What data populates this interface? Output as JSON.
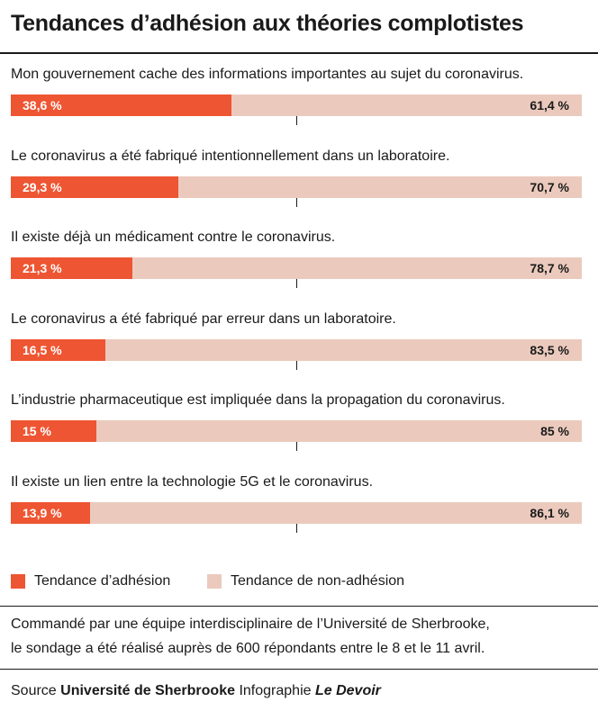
{
  "title": "Tendances d’adhésion aux théories complotistes",
  "chart_data": {
    "type": "bar",
    "stacked": true,
    "orientation": "horizontal",
    "xlim": [
      0,
      100
    ],
    "colors": {
      "adhesion": "#ee5532",
      "non_adhesion": "#ebcabd"
    },
    "categories": [
      "Mon gouvernement cache des informations importantes au sujet du coronavirus.",
      "Le coronavirus a été fabriqué intentionnellement dans un laboratoire.",
      "Il existe déjà un médicament contre le coronavirus.",
      "Le coronavirus a été fabriqué par erreur dans un laboratoire.",
      "L’industrie pharmaceutique est impliquée dans la propagation du coronavirus.",
      "Il existe un lien entre la technologie 5G et le coronavirus."
    ],
    "series": [
      {
        "name": "Tendance d’adhésion",
        "values": [
          38.6,
          29.3,
          21.3,
          16.5,
          15,
          13.9
        ],
        "labels": [
          "38,6 %",
          "29,3 %",
          "21,3 %",
          "16,5 %",
          "15 %",
          "13,9 %"
        ]
      },
      {
        "name": "Tendance de non-adhésion",
        "values": [
          61.4,
          70.7,
          78.7,
          83.5,
          85,
          86.1
        ],
        "labels": [
          "61,4 %",
          "70,7 %",
          "78,7 %",
          "83,5 %",
          "85 %",
          "86,1 %"
        ]
      }
    ],
    "legend": "bottom-left"
  },
  "note": {
    "line1": "Commandé par une équipe interdisciplinaire de l’Université de Sherbrooke,",
    "line2": "le sondage a été réalisé auprès de 600 répondants entre le 8 et le 11 avril."
  },
  "source": {
    "prefix": "Source",
    "org": "Université de Sherbrooke",
    "middle": "Infographie",
    "publisher": "Le Devoir"
  }
}
